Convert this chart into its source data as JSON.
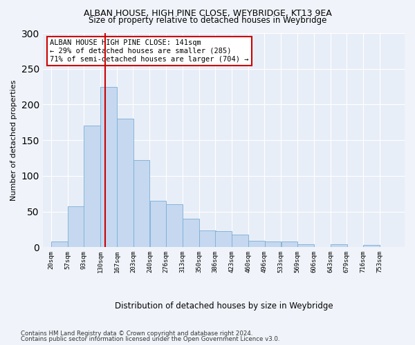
{
  "title1": "ALBAN HOUSE, HIGH PINE CLOSE, WEYBRIDGE, KT13 9EA",
  "title2": "Size of property relative to detached houses in Weybridge",
  "xlabel": "Distribution of detached houses by size in Weybridge",
  "ylabel": "Number of detached properties",
  "bar_values": [
    8,
    57,
    170,
    225,
    180,
    122,
    65,
    60,
    40,
    23,
    22,
    18,
    9,
    8,
    8,
    4,
    0,
    4,
    0,
    3
  ],
  "bin_labels": [
    "20sqm",
    "57sqm",
    "93sqm",
    "130sqm",
    "167sqm",
    "203sqm",
    "240sqm",
    "276sqm",
    "313sqm",
    "350sqm",
    "386sqm",
    "423sqm",
    "460sqm",
    "496sqm",
    "533sqm",
    "569sqm",
    "606sqm",
    "643sqm",
    "679sqm",
    "716sqm",
    "753sqm"
  ],
  "bin_edges": [
    20,
    57,
    93,
    130,
    167,
    203,
    240,
    276,
    313,
    350,
    386,
    423,
    460,
    496,
    533,
    569,
    606,
    643,
    679,
    716,
    753
  ],
  "property_size": 141,
  "property_label": "ALBAN HOUSE HIGH PINE CLOSE: 141sqm",
  "annotation_line1": "← 29% of detached houses are smaller (285)",
  "annotation_line2": "71% of semi-detached houses are larger (704) →",
  "bar_color": "#c5d8f0",
  "bar_edge_color": "#7aadd4",
  "vline_color": "#cc0000",
  "annotation_box_color": "#ffffff",
  "annotation_box_edge": "#cc0000",
  "background_color": "#e8eef7",
  "ylim": [
    0,
    300
  ],
  "yticks": [
    0,
    50,
    100,
    150,
    200,
    250,
    300
  ],
  "footer1": "Contains HM Land Registry data © Crown copyright and database right 2024.",
  "footer2": "Contains public sector information licensed under the Open Government Licence v3.0."
}
